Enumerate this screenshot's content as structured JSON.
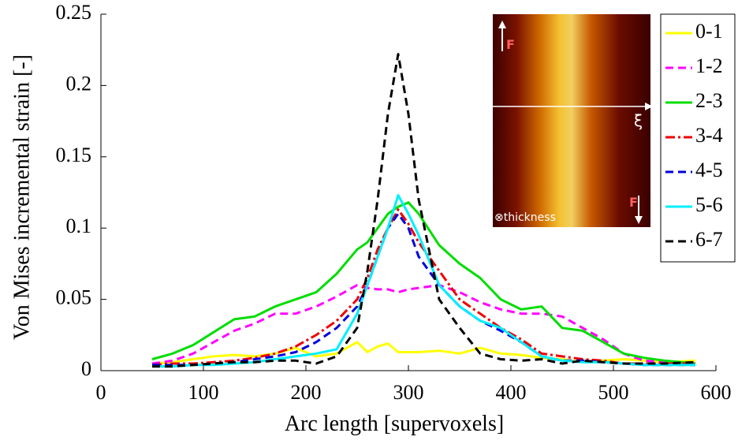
{
  "chart_data": {
    "type": "line",
    "xlabel": "Arc length [supervoxels]",
    "ylabel": "Von Mises incremental strain [-]",
    "x": [
      50,
      70,
      90,
      110,
      130,
      150,
      170,
      190,
      210,
      230,
      250,
      260,
      270,
      280,
      290,
      300,
      310,
      330,
      350,
      370,
      390,
      410,
      430,
      450,
      470,
      490,
      510,
      530,
      550,
      580
    ],
    "series": [
      {
        "name": "0-1",
        "color": "#ffff00",
        "style": "solid",
        "values": [
          0.005,
          0.006,
          0.008,
          0.01,
          0.011,
          0.01,
          0.012,
          0.016,
          0.01,
          0.012,
          0.02,
          0.013,
          0.017,
          0.019,
          0.013,
          0.013,
          0.013,
          0.014,
          0.012,
          0.016,
          0.012,
          0.011,
          0.009,
          0.008,
          0.006,
          0.007,
          0.008,
          0.007,
          0.006,
          0.007
        ]
      },
      {
        "name": "1-2",
        "color": "#ff00ff",
        "style": "dashed",
        "values": [
          0.005,
          0.007,
          0.012,
          0.02,
          0.028,
          0.033,
          0.04,
          0.04,
          0.045,
          0.052,
          0.06,
          0.058,
          0.057,
          0.057,
          0.055,
          0.057,
          0.058,
          0.06,
          0.055,
          0.048,
          0.043,
          0.04,
          0.04,
          0.038,
          0.03,
          0.022,
          0.012,
          0.007,
          0.006,
          0.005
        ]
      },
      {
        "name": "2-3",
        "color": "#00dd00",
        "style": "solid",
        "values": [
          0.008,
          0.012,
          0.018,
          0.027,
          0.036,
          0.038,
          0.045,
          0.05,
          0.055,
          0.068,
          0.085,
          0.09,
          0.1,
          0.11,
          0.115,
          0.118,
          0.11,
          0.088,
          0.075,
          0.065,
          0.05,
          0.043,
          0.045,
          0.03,
          0.028,
          0.02,
          0.012,
          0.009,
          0.007,
          0.005
        ]
      },
      {
        "name": "3-4",
        "color": "#ee0000",
        "style": "dashdot",
        "values": [
          0.004,
          0.005,
          0.005,
          0.006,
          0.007,
          0.009,
          0.012,
          0.017,
          0.025,
          0.035,
          0.05,
          0.065,
          0.085,
          0.1,
          0.113,
          0.103,
          0.09,
          0.07,
          0.05,
          0.04,
          0.03,
          0.022,
          0.012,
          0.01,
          0.008,
          0.007,
          0.005,
          0.005,
          0.005,
          0.005
        ]
      },
      {
        "name": "4-5",
        "color": "#0000dd",
        "style": "dashed",
        "values": [
          0.004,
          0.004,
          0.004,
          0.005,
          0.006,
          0.008,
          0.01,
          0.013,
          0.02,
          0.03,
          0.045,
          0.06,
          0.08,
          0.1,
          0.11,
          0.1,
          0.08,
          0.06,
          0.045,
          0.035,
          0.028,
          0.02,
          0.01,
          0.007,
          0.007,
          0.006,
          0.005,
          0.004,
          0.004,
          0.004
        ]
      },
      {
        "name": "5-6",
        "color": "#00eeff",
        "style": "solid",
        "values": [
          0.003,
          0.003,
          0.004,
          0.004,
          0.005,
          0.006,
          0.008,
          0.01,
          0.012,
          0.015,
          0.04,
          0.06,
          0.08,
          0.1,
          0.123,
          0.11,
          0.095,
          0.06,
          0.045,
          0.035,
          0.03,
          0.02,
          0.01,
          0.007,
          0.006,
          0.006,
          0.005,
          0.004,
          0.004,
          0.004
        ]
      },
      {
        "name": "6-7",
        "color": "#000000",
        "style": "dashed",
        "values": [
          0.003,
          0.003,
          0.004,
          0.005,
          0.006,
          0.006,
          0.007,
          0.007,
          0.005,
          0.01,
          0.03,
          0.07,
          0.12,
          0.18,
          0.222,
          0.18,
          0.12,
          0.05,
          0.03,
          0.012,
          0.008,
          0.007,
          0.008,
          0.005,
          0.007,
          0.006,
          0.005,
          0.005,
          0.005,
          0.006
        ]
      }
    ],
    "xlim": [
      0,
      600
    ],
    "xticks": [
      0,
      100,
      200,
      300,
      400,
      500,
      600
    ],
    "ylim": [
      0,
      0.25
    ],
    "yticks": [
      0,
      0.05,
      0.1,
      0.15,
      0.2,
      0.25
    ],
    "grid": false,
    "legend": "upper right",
    "inset_labels": [
      "F",
      "ξ",
      "F",
      "⊗thickness"
    ]
  }
}
